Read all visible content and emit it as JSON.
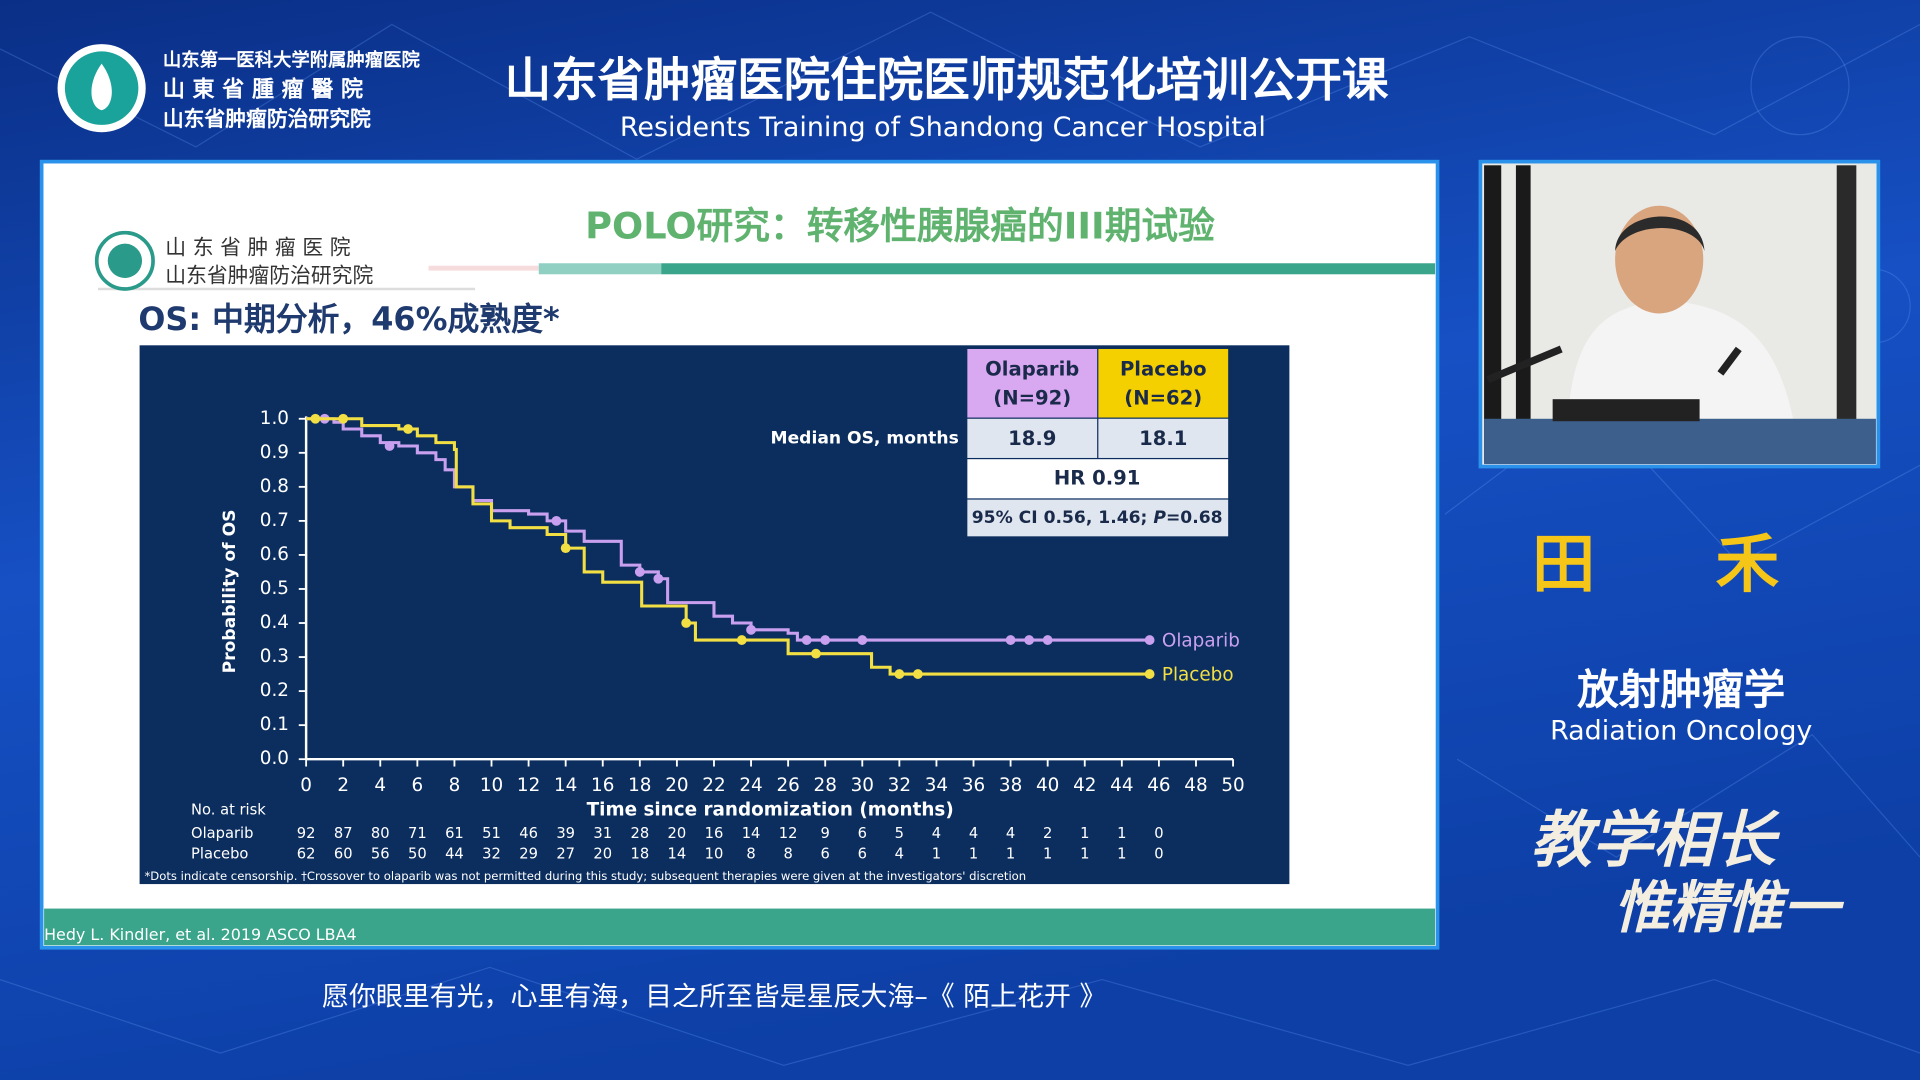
{
  "header": {
    "org_lines": [
      "山东第一医科大学附属肿瘤医院",
      "山 東 省 腫 瘤 醫 院",
      "山东省肿瘤防治研究院"
    ],
    "title": "山东省肿瘤医院住院医师规范化培训公开课",
    "subtitle": "Residents Training of Shandong Cancer Hospital"
  },
  "slide": {
    "title": "POLO研究：转移性胰腺癌的III期试验",
    "logo_lines": [
      "山 东 省 肿 瘤 医 院",
      "山东省肿瘤防治研究院"
    ],
    "heading": "OS: 中期分析，46%成熟度*",
    "citation": "Hedy L. Kindler, et al. 2019 ASCO  LBA4",
    "summary_table": {
      "headers": [
        [
          "Olaparib",
          "(N=92)"
        ],
        [
          "Placebo",
          "(N=62)"
        ]
      ],
      "median_label": "Median OS, months",
      "medians": [
        "18.9",
        "18.1"
      ],
      "hr": "HR 0.91",
      "ci": [
        "95% CI 0.56, 1.46; ",
        "P",
        "=0.68"
      ]
    }
  },
  "chart_data": {
    "type": "step",
    "y_label": "Probability of OS",
    "x_label": "Time since randomization (months)",
    "footnote": "*Dots indicate censorship. †Crossover to olaparib was not permitted during this study; subsequent therapies were given at the investigators' discretion",
    "xlim": [
      0,
      50
    ],
    "ylim": [
      0,
      1
    ],
    "xticks": [
      0,
      2,
      4,
      6,
      8,
      10,
      12,
      14,
      16,
      18,
      20,
      22,
      24,
      26,
      28,
      30,
      32,
      34,
      36,
      38,
      40,
      42,
      44,
      46,
      48,
      50
    ],
    "yticks": [
      {
        "value": 0,
        "label": "0.0"
      },
      0.1,
      0.2,
      0.3,
      0.4,
      0.5,
      0.6,
      0.7,
      0.8,
      0.9,
      {
        "value": 1,
        "label": "1.0"
      }
    ],
    "series": [
      {
        "name": "Olaparib",
        "color": "#c9a0ef",
        "x": [
          0,
          1.5,
          2,
          3,
          4,
          5,
          6,
          7,
          7.5,
          8,
          9,
          10,
          12,
          13,
          14,
          15,
          17,
          18,
          19,
          19.5,
          21,
          22,
          23,
          24,
          26,
          26.5,
          45.5
        ],
        "values": [
          1.0,
          0.99,
          0.97,
          0.95,
          0.93,
          0.92,
          0.9,
          0.88,
          0.85,
          0.8,
          0.76,
          0.73,
          0.72,
          0.7,
          0.67,
          0.64,
          0.57,
          0.55,
          0.53,
          0.46,
          0.46,
          0.42,
          0.4,
          0.38,
          0.37,
          0.35,
          0.35
        ],
        "censored": {
          "x": [
            1,
            4.5,
            13.5,
            18,
            19,
            24,
            27,
            28,
            30,
            38,
            39,
            40,
            45.5
          ],
          "values": [
            1.0,
            0.92,
            0.7,
            0.55,
            0.53,
            0.38,
            0.35,
            0.35,
            0.35,
            0.35,
            0.35,
            0.35,
            0.35
          ]
        }
      },
      {
        "name": "Placebo",
        "color": "#f2df44",
        "x": [
          0,
          2,
          3,
          5,
          6,
          7,
          8,
          8.1,
          9,
          10,
          11,
          13,
          14,
          15,
          16,
          18,
          18.1,
          20,
          20.5,
          21,
          25,
          26,
          30,
          30.5,
          31.5,
          45.5
        ],
        "values": [
          1.0,
          1.0,
          0.98,
          0.97,
          0.95,
          0.93,
          0.91,
          0.8,
          0.75,
          0.7,
          0.68,
          0.66,
          0.62,
          0.55,
          0.52,
          0.52,
          0.45,
          0.45,
          0.4,
          0.35,
          0.35,
          0.31,
          0.31,
          0.27,
          0.25,
          0.25
        ],
        "censored": {
          "x": [
            0.5,
            2,
            5.5,
            14,
            20.5,
            23.5,
            27.5,
            32,
            33,
            45.5
          ],
          "values": [
            1.0,
            1.0,
            0.97,
            0.62,
            0.4,
            0.35,
            0.31,
            0.25,
            0.25,
            0.25
          ]
        }
      }
    ],
    "risk_table": {
      "title": "No. at risk",
      "rows": [
        {
          "name": "Olaparib",
          "values": [
            "92",
            "87",
            "80",
            "71",
            "61",
            "51",
            "46",
            "39",
            "31",
            "28",
            "20",
            "16",
            "14",
            "12",
            "9",
            "6",
            "5",
            "4",
            "4",
            "4",
            "2",
            "1",
            "1",
            "0"
          ]
        },
        {
          "name": "Placebo",
          "values": [
            "62",
            "60",
            "56",
            "50",
            "44",
            "32",
            "29",
            "27",
            "20",
            "18",
            "14",
            "10",
            "8",
            "8",
            "6",
            "6",
            "4",
            "1",
            "1",
            "1",
            "1",
            "1",
            "1",
            "0"
          ]
        }
      ]
    }
  },
  "speaker": {
    "name": "田 禾",
    "department": "放射肿瘤学",
    "department_en": "Radiation Oncology",
    "motto": [
      "教学相长",
      "惟精惟一"
    ]
  },
  "caption": "愿你眼里有光，心里有海，目之所至皆是星辰大海–《 陌上花开 》"
}
